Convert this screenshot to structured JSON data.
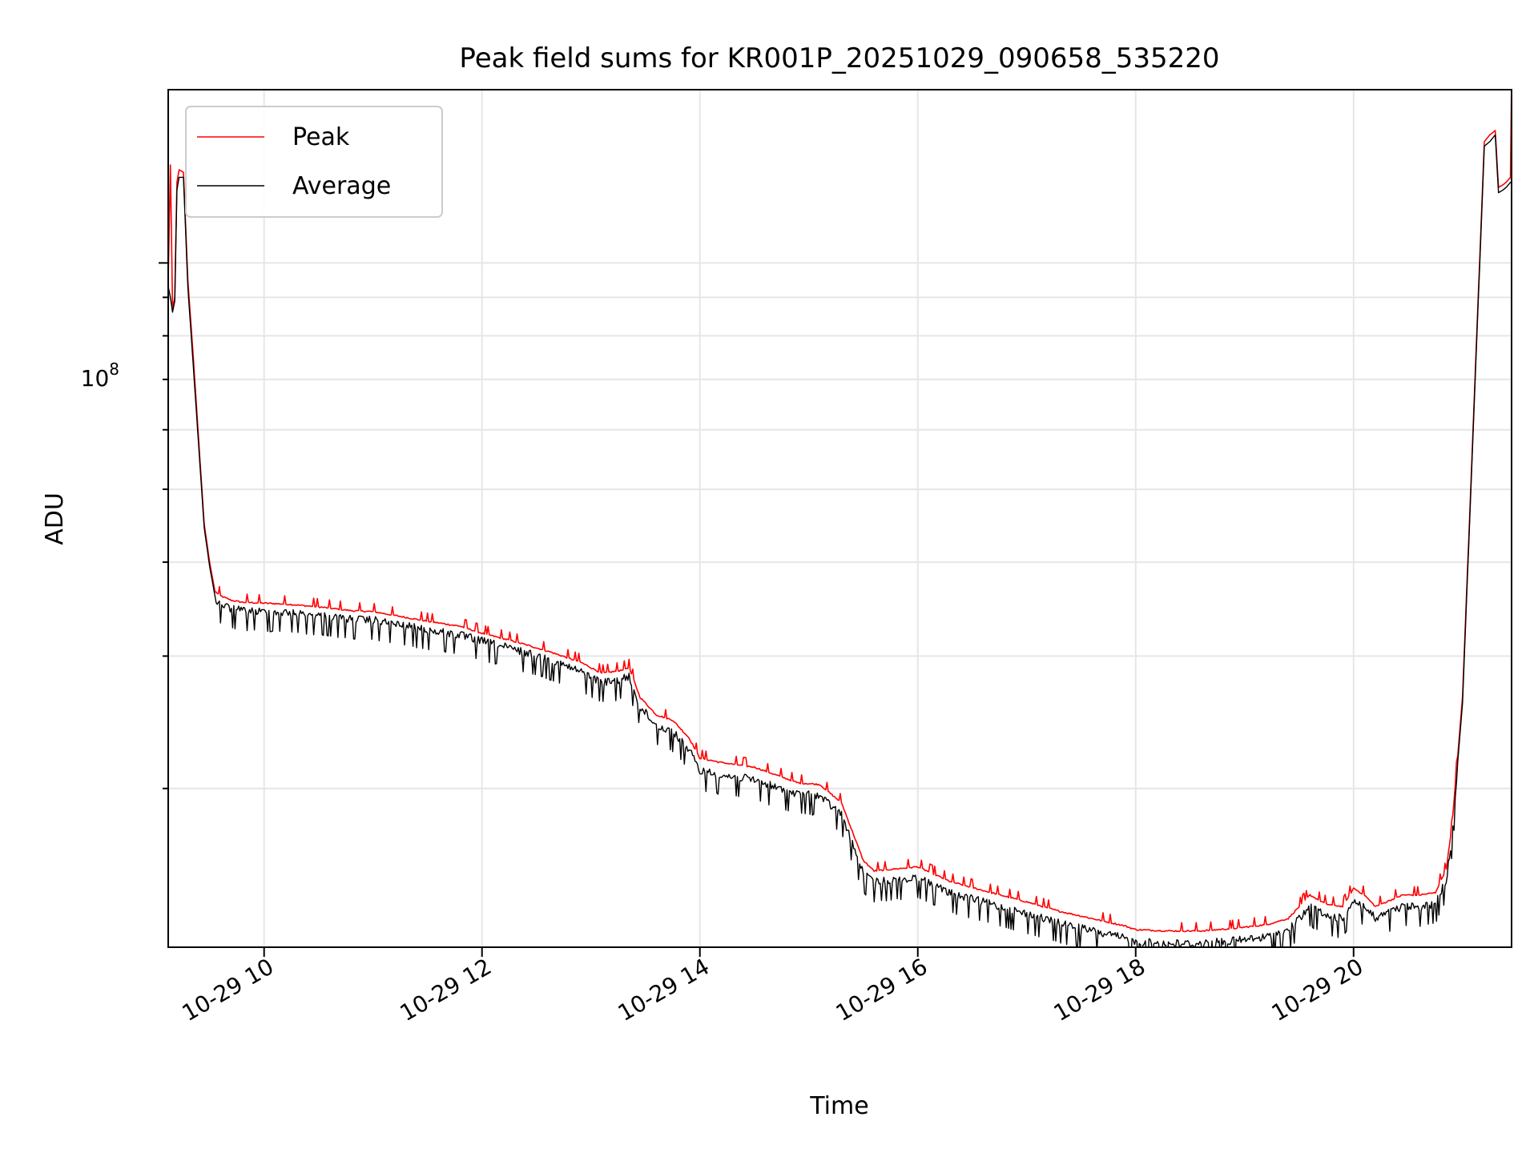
{
  "chart_data": {
    "type": "line",
    "title": "Peak field sums for KR001P_20251029_090658_535220",
    "xlabel": "Time",
    "ylabel": "ADU",
    "x_unit": "hours since 10-29 00:00",
    "xlim": [
      9.12,
      21.45
    ],
    "ylim": [
      12300000,
      170000000
    ],
    "yscale": "log",
    "grid": true,
    "legend_position": "upper-left",
    "x_ticks": [
      {
        "value": 10,
        "label": "10-29 10"
      },
      {
        "value": 12,
        "label": "10-29 12"
      },
      {
        "value": 14,
        "label": "10-29 14"
      },
      {
        "value": 16,
        "label": "10-29 16"
      },
      {
        "value": 18,
        "label": "10-29 18"
      },
      {
        "value": 20,
        "label": "10-29 20"
      }
    ],
    "y_major_tick": {
      "value": 100000000,
      "label_base": "10",
      "label_exp": "8"
    },
    "y_minor_ticks": [
      20000000,
      30000000,
      40000000,
      50000000,
      60000000,
      70000000,
      80000000,
      90000000
    ],
    "series": [
      {
        "name": "Peak",
        "color": "#ff0000",
        "x": [
          9.12,
          9.14,
          9.16,
          9.18,
          9.2,
          9.22,
          9.26,
          9.3,
          9.35,
          9.4,
          9.45,
          9.5,
          9.55,
          9.6,
          9.7,
          9.8,
          10.0,
          10.2,
          10.5,
          10.8,
          11.0,
          11.2,
          11.5,
          11.8,
          12.0,
          12.3,
          12.6,
          12.9,
          13.1,
          13.25,
          13.35,
          13.45,
          13.6,
          13.75,
          13.9,
          14.0,
          14.2,
          14.5,
          14.7,
          14.9,
          15.1,
          15.3,
          15.5,
          15.6,
          15.8,
          16.0,
          16.3,
          16.6,
          17.0,
          17.3,
          17.6,
          17.9,
          18.0,
          18.3,
          18.6,
          18.9,
          19.2,
          19.4,
          19.6,
          19.75,
          19.9,
          20.0,
          20.1,
          20.2,
          20.3,
          20.45,
          20.6,
          20.75,
          20.85,
          20.9,
          21.0,
          21.1,
          21.2,
          21.25,
          21.3,
          21.33,
          21.37,
          21.4,
          21.44,
          21.45
        ],
        "values": [
          95000000,
          135000000,
          87000000,
          90000000,
          128000000,
          133000000,
          132000000,
          95000000,
          75000000,
          58000000,
          45000000,
          40000000,
          36500000,
          36000000,
          35500000,
          35300000,
          35200000,
          35100000,
          34800000,
          34400000,
          34300000,
          33900000,
          33300000,
          32800000,
          32100000,
          31300000,
          30400000,
          29400000,
          28400000,
          28600000,
          28900000,
          26400000,
          25000000,
          24600000,
          23300000,
          21900000,
          21600000,
          21300000,
          20800000,
          20300000,
          20200000,
          19100000,
          16000000,
          15500000,
          15600000,
          15700000,
          15000000,
          14600000,
          14100000,
          13700000,
          13400000,
          13100000,
          12950000,
          12900000,
          12900000,
          13000000,
          13150000,
          13400000,
          14400000,
          14000000,
          13900000,
          14700000,
          14400000,
          13900000,
          14100000,
          14400000,
          14400000,
          14500000,
          15600000,
          17600000,
          26500000,
          62000000,
          145000000,
          148000000,
          150000000,
          126000000,
          127000000,
          128000000,
          130000000,
          175000000
        ]
      },
      {
        "name": "Average",
        "color": "#000000",
        "x": [
          9.12,
          9.14,
          9.16,
          9.18,
          9.2,
          9.22,
          9.26,
          9.3,
          9.35,
          9.4,
          9.45,
          9.5,
          9.55,
          9.6,
          9.7,
          9.8,
          10.0,
          10.2,
          10.5,
          10.8,
          11.0,
          11.2,
          11.5,
          11.8,
          12.0,
          12.3,
          12.6,
          12.9,
          13.1,
          13.25,
          13.35,
          13.45,
          13.6,
          13.75,
          13.9,
          14.0,
          14.2,
          14.5,
          14.7,
          14.9,
          15.1,
          15.3,
          15.5,
          15.6,
          15.8,
          16.0,
          16.3,
          16.6,
          17.0,
          17.3,
          17.6,
          17.9,
          18.0,
          18.3,
          18.6,
          18.9,
          19.2,
          19.4,
          19.6,
          19.75,
          19.9,
          20.0,
          20.1,
          20.2,
          20.3,
          20.45,
          20.6,
          20.75,
          20.85,
          20.9,
          21.0,
          21.1,
          21.2,
          21.25,
          21.3,
          21.33,
          21.37,
          21.4,
          21.44,
          21.45
        ],
        "values": [
          93000000,
          90000000,
          86000000,
          89000000,
          125000000,
          130000000,
          130000000,
          93000000,
          73000000,
          57000000,
          44500000,
          39500000,
          36000000,
          35600000,
          35100000,
          34900000,
          34800000,
          34700000,
          34400000,
          34000000,
          33900000,
          33500000,
          32900000,
          32400000,
          31800000,
          31000000,
          30100000,
          29000000,
          28000000,
          28200000,
          28500000,
          26000000,
          24600000,
          24100000,
          22800000,
          21400000,
          21100000,
          20800000,
          20300000,
          19900000,
          19800000,
          18700000,
          15600000,
          15200000,
          15300000,
          15400000,
          14700000,
          14300000,
          13800000,
          13400000,
          13100000,
          12800000,
          12650000,
          12600000,
          12600000,
          12700000,
          12850000,
          13100000,
          14100000,
          13700000,
          13600000,
          14400000,
          14100000,
          13600000,
          13800000,
          14100000,
          14100000,
          14200000,
          15300000,
          17300000,
          26000000,
          61000000,
          143000000,
          145000000,
          148000000,
          124000000,
          125000000,
          126000000,
          128000000,
          128000000
        ]
      }
    ]
  }
}
